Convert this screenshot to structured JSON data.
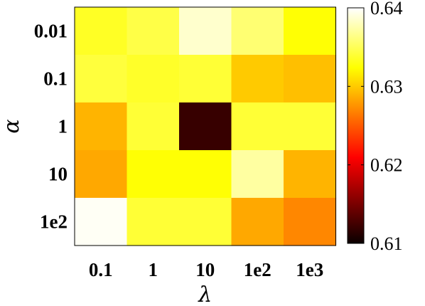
{
  "chart_data": {
    "type": "heatmap",
    "title": "",
    "xlabel": "λ",
    "ylabel": "α",
    "x_categories": [
      "0.1",
      "1",
      "10",
      "1e2",
      "1e3"
    ],
    "y_categories": [
      "0.01",
      "0.1",
      "1",
      "10",
      "1e2"
    ],
    "values": [
      [
        0.6335,
        0.6345,
        0.6385,
        0.6358,
        0.6325
      ],
      [
        0.6342,
        0.6336,
        0.634,
        0.63,
        0.6295
      ],
      [
        0.629,
        0.634,
        0.612,
        0.634,
        0.634
      ],
      [
        0.6285,
        0.6325,
        0.6325,
        0.6372,
        0.629
      ],
      [
        0.6397,
        0.634,
        0.634,
        0.6285,
        0.627
      ]
    ],
    "colorbar": {
      "colormap": "hot",
      "range": [
        0.61,
        0.64
      ],
      "ticks": [
        "0.61",
        "0.62",
        "0.63",
        "0.64"
      ],
      "tick_values": [
        0.61,
        0.62,
        0.63,
        0.64
      ]
    }
  }
}
